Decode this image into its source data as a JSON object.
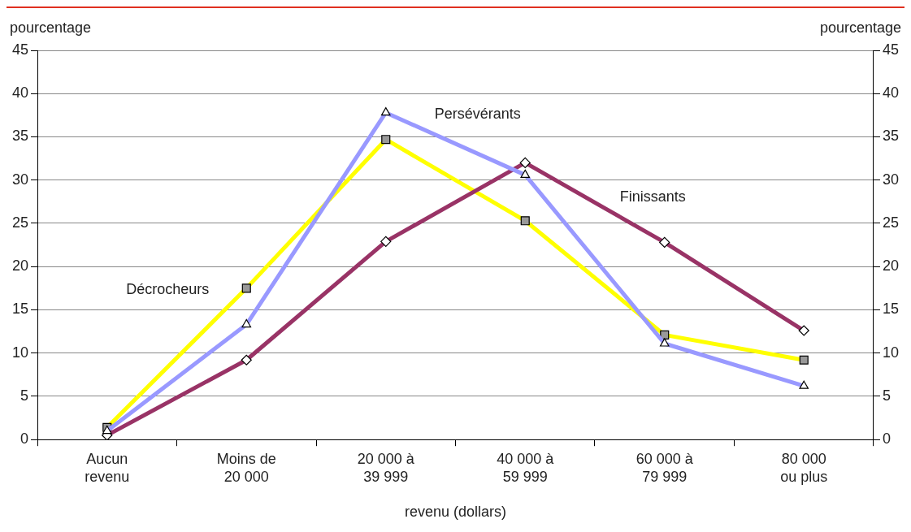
{
  "chart_data": {
    "type": "line",
    "xlabel": "revenu (dollars)",
    "ylabel": "pourcentage",
    "y2label": "pourcentage",
    "categories": [
      "Aucun revenu",
      "Moins de 20 000",
      "20 000 à 39 999",
      "40 000 à 59 999",
      "60 000 à 79 999",
      "80 000 ou plus"
    ],
    "ylim": [
      0,
      45
    ],
    "yticks": [
      0,
      5,
      10,
      15,
      20,
      25,
      30,
      35,
      40,
      45
    ],
    "y2lim": [
      0,
      45
    ],
    "y2ticks": [
      0,
      5,
      10,
      15,
      20,
      25,
      30,
      35,
      40,
      45
    ],
    "grid": "y",
    "legend": false,
    "series": [
      {
        "name": "Persévérants",
        "color": "#9999ff",
        "marker": "triangle",
        "values": [
          1.0,
          13.3,
          37.8,
          30.6,
          11.1,
          6.2
        ]
      },
      {
        "name": "Finissants",
        "color": "#993366",
        "marker": "diamond",
        "values": [
          0.5,
          9.2,
          22.9,
          32.0,
          22.8,
          12.6
        ]
      },
      {
        "name": "Décrocheurs",
        "color": "#ffff00",
        "marker": "square",
        "values": [
          1.4,
          17.5,
          34.7,
          25.3,
          12.1,
          9.2
        ]
      }
    ]
  }
}
